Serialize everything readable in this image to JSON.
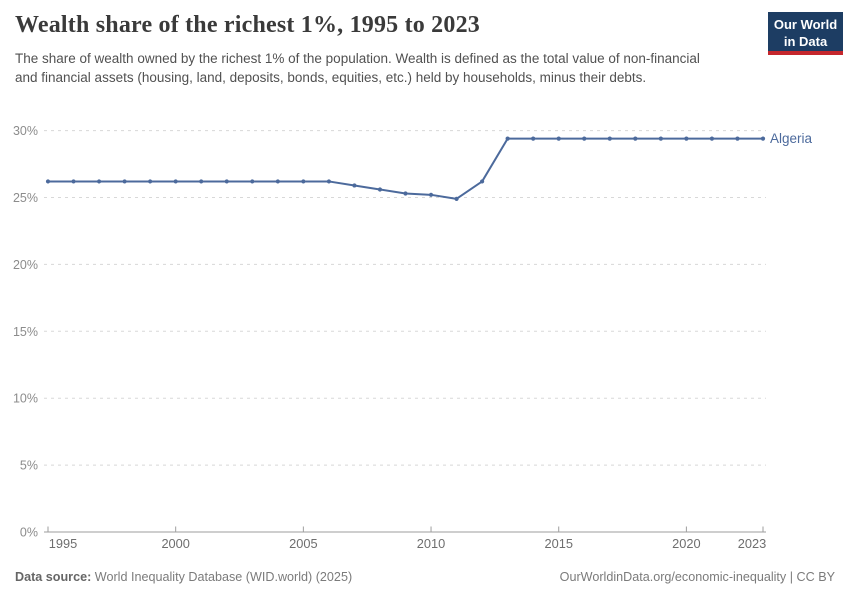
{
  "header": {
    "title": "Wealth share of the richest 1%, 1995 to 2023",
    "subtitle": "The share of wealth owned by the richest 1% of the population. Wealth is defined as the total value of non-financial and financial assets (housing, land, deposits, bonds, equities, etc.) held by households, minus their debts.",
    "logo": {
      "line1": "Our World",
      "line2": "in Data",
      "bg_color": "#1d3d63",
      "bar_color": "#c5272d"
    }
  },
  "chart_data": {
    "type": "line",
    "title": "Wealth share of the richest 1%, 1995 to 2023",
    "xlabel": "",
    "ylabel": "",
    "unit": "%",
    "xlim": [
      1995,
      2023
    ],
    "ylim": [
      0,
      30
    ],
    "grid": "horizontal-dashed",
    "legend_position": "end-of-line-label",
    "x_ticks": [
      1995,
      2000,
      2005,
      2010,
      2015,
      2020,
      2023
    ],
    "x_tick_labels": [
      "1995",
      "2000",
      "2005",
      "2010",
      "2015",
      "2020",
      "2023"
    ],
    "y_ticks": [
      0,
      5,
      10,
      15,
      20,
      25,
      30
    ],
    "y_tick_labels": [
      "0%",
      "5%",
      "10%",
      "15%",
      "20%",
      "25%",
      "30%"
    ],
    "x": [
      1995,
      1996,
      1997,
      1998,
      1999,
      2000,
      2001,
      2002,
      2003,
      2004,
      2005,
      2006,
      2007,
      2008,
      2009,
      2010,
      2011,
      2012,
      2013,
      2014,
      2015,
      2016,
      2017,
      2018,
      2019,
      2020,
      2021,
      2022,
      2023
    ],
    "series": [
      {
        "name": "Algeria",
        "color": "#4c6a9c",
        "values": [
          26.2,
          26.2,
          26.2,
          26.2,
          26.2,
          26.2,
          26.2,
          26.2,
          26.2,
          26.2,
          26.2,
          26.2,
          25.9,
          25.6,
          25.3,
          25.2,
          24.9,
          26.2,
          29.4,
          29.4,
          29.4,
          29.4,
          29.4,
          29.4,
          29.4,
          29.4,
          29.4,
          29.4,
          29.4
        ]
      }
    ]
  },
  "footer": {
    "datasource_label": "Data source:",
    "datasource_value": " World Inequality Database (WID.world) (2025)",
    "attribution": "OurWorldinData.org/economic-inequality | CC BY"
  }
}
